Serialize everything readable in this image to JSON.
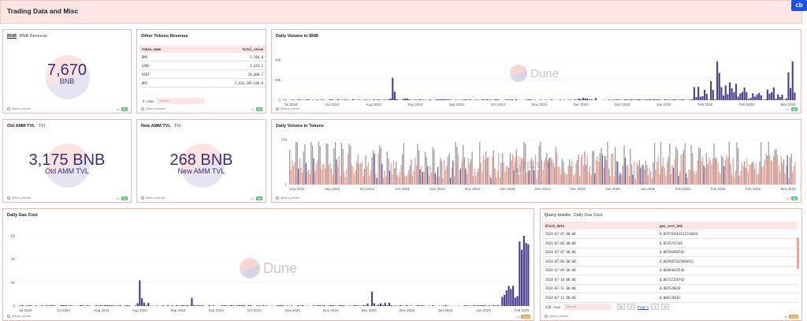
{
  "header": {
    "title": "Trading Data and Misc",
    "badge": "cb"
  },
  "common": {
    "author": "@four_meme",
    "watermark": "Dune"
  },
  "bnb_panel": {
    "tab": "BNB",
    "title": "BNB Revenue",
    "value": "7,670",
    "label": "BNB"
  },
  "other_tokens": {
    "title": "Other Tokens Revenue",
    "columns": [
      "token_name",
      "total_value"
    ],
    "rows": [
      [
        "DMX",
        "1,186.0"
      ],
      [
        "CAKE",
        "1,819.1"
      ],
      [
        "USDT",
        "10,000.7"
      ],
      [
        "WHY",
        "7,634,395,540.9"
      ]
    ],
    "row_count": "4 rows",
    "search_placeholder": "Search..."
  },
  "daily_volume_bnb": {
    "title": "Daily Volume in BNB",
    "yticks": [
      "40k",
      "20k",
      "0"
    ],
    "xticks": [
      "Jul 2024",
      "Jul 2024",
      "Aug 2024",
      "Sep 2024",
      "Sep 2024",
      "Oct 2024",
      "Nov 2024",
      "Dec 2024",
      "Dec 2024",
      "Jan 2025",
      "Feb 2025",
      "Feb 2025",
      "Mar 2025"
    ]
  },
  "old_amm": {
    "tab": "Old AMM TVL",
    "title": "TVl",
    "value": "3,175 BNB",
    "label": "Old AMM TVL"
  },
  "new_amm": {
    "tab": "New AMM TVL",
    "title": "TVl",
    "value": "268 BNB",
    "label": "New AMM TVL"
  },
  "daily_volume_tokens": {
    "title": "Daily Volume in Tokens",
    "yticks": [
      "10b",
      "1"
    ],
    "xticks": [
      "Sep 2024",
      "Sep 2024",
      "Oct 2024",
      "Oct 2024",
      "Nov 2024",
      "Nov 2024",
      "Dec 2024",
      "Dec 2024",
      "Dec 2024",
      "Jan 2025",
      "Jan 2025",
      "Feb 2025",
      "Feb 2025",
      "Feb 2025",
      "Mar 2025"
    ]
  },
  "daily_gas": {
    "title": "Daily Gas Cost",
    "yticks": [
      "60",
      "40",
      "20",
      "0"
    ],
    "xticks": [
      "Jul 2024",
      "Jul 2024",
      "Aug 2024",
      "Aug 2024",
      "Sep 2024",
      "Sep 2024",
      "Oct 2024",
      "Nov 2024",
      "Nov 2024",
      "Dec 2024",
      "Dec 2024",
      "Jan 2025",
      "Jan 2025",
      "Feb 2025"
    ]
  },
  "query_results": {
    "tab": "Query results",
    "title": "Daily Gas Cost",
    "columns": [
      "block_date",
      "gas_cost_bnb"
    ],
    "rows": [
      [
        "2024-07-05 00:00",
        "0.055783461612234044"
      ],
      [
        "2024-07-06 00:00",
        "0.0535237146"
      ],
      [
        "2024-07-07 00:00",
        "0.00796960702"
      ],
      [
        "2024-07-08 00:00",
        "0.0059857625886911"
      ],
      [
        "2024-07-09 00:00",
        "0.0040464353b"
      ],
      [
        "2024-07-10 00:00",
        "0.007172507d2"
      ],
      [
        "2024-07-11 00:00",
        "0.002520828"
      ],
      [
        "2024-07-12 00:00",
        "0.000139102"
      ]
    ],
    "row_count": "236 rows",
    "search_placeholder": "Search...",
    "page_label": "Page 1"
  },
  "colors": {
    "bar": "#4b3f8f",
    "pink_bar": "#f0907e",
    "grey_bar": "#8a8a90",
    "border": "#f3b5ad",
    "header_bg": "#fde6e3"
  }
}
